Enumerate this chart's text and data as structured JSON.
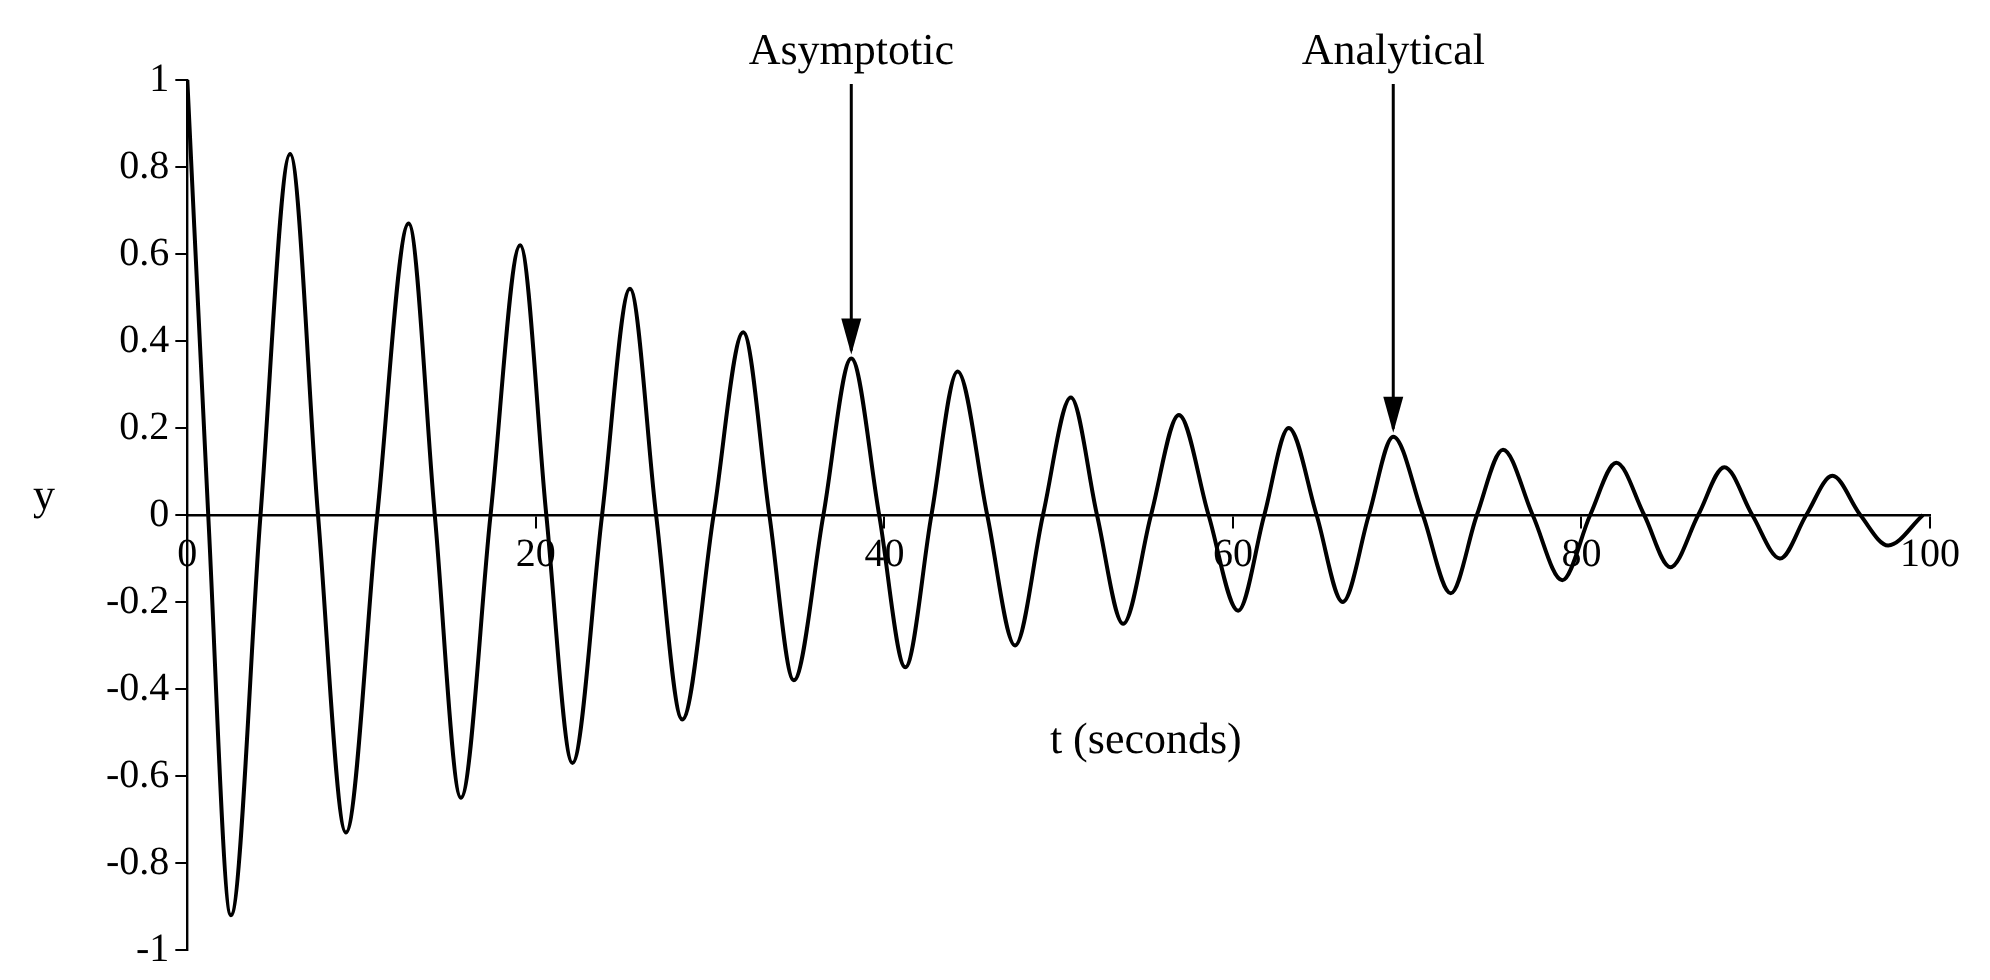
{
  "chart_data": {
    "type": "line",
    "xlabel": "t (seconds)",
    "ylabel": "y",
    "series": [
      {
        "color": "#000000",
        "x": [
          0,
          1.2,
          2.5,
          4.2,
          5.9,
          7.5,
          9.1,
          10.9,
          12.7,
          14.2,
          15.7,
          17.4,
          19.1,
          20.6,
          22.1,
          23.8,
          25.4,
          26.9,
          28.4,
          30.2,
          31.9,
          33.4,
          34.8,
          36.5,
          38.1,
          39.7,
          41.2,
          42.7,
          44.2,
          45.9,
          47.5,
          49.1,
          50.7,
          52.2,
          53.7,
          55.3,
          56.9,
          58.6,
          60.3,
          61.8,
          63.2,
          64.8,
          66.3,
          67.8,
          69.2,
          70.9,
          72.5,
          74,
          75.5,
          77.2,
          78.9,
          80.5,
          82,
          83.6,
          85.1,
          86.7,
          88.2,
          89.8,
          91.4,
          92.9,
          94.4,
          96,
          97.6,
          99.6
        ],
        "values": [
          1,
          0,
          -0.92,
          0,
          0.83,
          0,
          -0.73,
          0,
          0.67,
          0,
          -0.65,
          0,
          0.62,
          0,
          -0.57,
          0,
          0.52,
          0,
          -0.47,
          0,
          0.42,
          0,
          -0.38,
          0,
          0.36,
          0,
          -0.35,
          0,
          0.33,
          0,
          -0.3,
          0,
          0.27,
          0,
          -0.25,
          0,
          0.23,
          0,
          -0.22,
          0,
          0.2,
          0,
          -0.2,
          0,
          0.18,
          0,
          -0.18,
          0,
          0.15,
          0,
          -0.15,
          0,
          0.12,
          0,
          -0.12,
          0,
          0.11,
          0,
          -0.1,
          0,
          0.09,
          0,
          -0.07,
          0
        ]
      }
    ],
    "xlim": [
      0,
      100
    ],
    "xticks": [
      0,
      20,
      40,
      60,
      80,
      100
    ],
    "ylim": [
      -1,
      1
    ],
    "yticks": [
      -1,
      -0.8,
      -0.6,
      -0.4,
      -0.2,
      0,
      0.2,
      0.4,
      0.6,
      0.8,
      1
    ],
    "grid": false,
    "legend": false,
    "marker": "none",
    "line_style": "solid",
    "annotations": [
      {
        "text": "Asymptotic",
        "x": 38.1,
        "y": 0.36
      },
      {
        "text": "Analytical",
        "x": 69.2,
        "y": 0.18
      }
    ]
  }
}
